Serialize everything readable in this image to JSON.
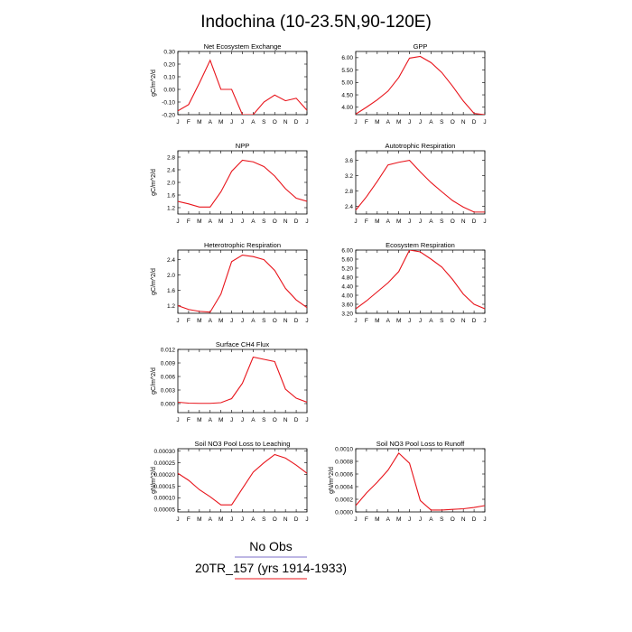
{
  "figure": {
    "title": "Indochina (10-23.5N,90-120E)",
    "line_color": "#e8141b",
    "legend": [
      {
        "label": "No Obs",
        "color": "#7d6fc9"
      },
      {
        "label": "20TR_157 (yrs 1914-1933)",
        "color": "#e8141b"
      }
    ]
  },
  "chart_data": [
    {
      "type": "line",
      "title": "Net Ecosystem Exchange",
      "ylabel": "gC/m^2/d",
      "categories": [
        "J",
        "F",
        "M",
        "A",
        "M",
        "J",
        "J",
        "A",
        "S",
        "O",
        "N",
        "D",
        "J"
      ],
      "values": [
        -0.17,
        -0.12,
        0.05,
        0.23,
        0.0,
        0.0,
        -0.2,
        -0.2,
        -0.1,
        -0.045,
        -0.09,
        -0.07,
        -0.165
      ],
      "ylim": [
        -0.2,
        0.3
      ],
      "yticks": [
        "-0.20",
        "-0.10",
        "0.00",
        "0.10",
        "0.20",
        "0.30"
      ],
      "ytick_values": [
        -0.2,
        -0.1,
        0.0,
        0.1,
        0.2,
        0.3
      ]
    },
    {
      "type": "line",
      "title": "GPP",
      "ylabel": "",
      "categories": [
        "J",
        "F",
        "M",
        "A",
        "M",
        "J",
        "J",
        "A",
        "S",
        "O",
        "N",
        "D",
        "J"
      ],
      "values": [
        3.72,
        4.0,
        4.3,
        4.65,
        5.2,
        5.98,
        6.05,
        5.8,
        5.4,
        4.85,
        4.25,
        3.75,
        3.7
      ],
      "ylim": [
        3.7,
        6.25
      ],
      "yticks": [
        "4.00",
        "4.50",
        "5.00",
        "5.50",
        "6.00"
      ],
      "ytick_values": [
        4.0,
        4.5,
        5.0,
        5.5,
        6.0
      ]
    },
    {
      "type": "line",
      "title": "NPP",
      "ylabel": "gC/m^2/d",
      "categories": [
        "J",
        "F",
        "M",
        "A",
        "M",
        "J",
        "J",
        "A",
        "S",
        "O",
        "N",
        "D",
        "J"
      ],
      "values": [
        1.4,
        1.32,
        1.22,
        1.22,
        1.7,
        2.35,
        2.7,
        2.65,
        2.5,
        2.2,
        1.8,
        1.5,
        1.4
      ],
      "ylim": [
        1.0,
        3.0
      ],
      "yticks": [
        "1.2",
        "1.6",
        "2.0",
        "2.4",
        "2.8"
      ],
      "ytick_values": [
        1.2,
        1.6,
        2.0,
        2.4,
        2.8
      ]
    },
    {
      "type": "line",
      "title": "Autotrophic Respiration",
      "ylabel": "",
      "categories": [
        "J",
        "F",
        "M",
        "A",
        "M",
        "J",
        "J",
        "A",
        "S",
        "O",
        "N",
        "D",
        "J"
      ],
      "values": [
        2.3,
        2.65,
        3.05,
        3.48,
        3.55,
        3.6,
        3.3,
        3.02,
        2.78,
        2.55,
        2.38,
        2.25,
        2.25
      ],
      "ylim": [
        2.2,
        3.85
      ],
      "yticks": [
        "2.4",
        "2.8",
        "3.2",
        "3.6"
      ],
      "ytick_values": [
        2.4,
        2.8,
        3.2,
        3.6
      ]
    },
    {
      "type": "line",
      "title": "Heterotrophic Respiration",
      "ylabel": "gC/m^2/d",
      "categories": [
        "J",
        "F",
        "M",
        "A",
        "M",
        "J",
        "J",
        "A",
        "S",
        "O",
        "N",
        "D",
        "J"
      ],
      "values": [
        1.2,
        1.1,
        1.05,
        1.03,
        1.5,
        2.35,
        2.52,
        2.48,
        2.4,
        2.12,
        1.65,
        1.35,
        1.15
      ],
      "ylim": [
        1.0,
        2.65
      ],
      "yticks": [
        "1.2",
        "1.6",
        "2.0",
        "2.4"
      ],
      "ytick_values": [
        1.2,
        1.6,
        2.0,
        2.4
      ]
    },
    {
      "type": "line",
      "title": "Ecosystem Respiration",
      "ylabel": "",
      "categories": [
        "J",
        "F",
        "M",
        "A",
        "M",
        "J",
        "J",
        "A",
        "S",
        "O",
        "N",
        "D",
        "J"
      ],
      "values": [
        3.4,
        3.75,
        4.15,
        4.55,
        5.05,
        6.0,
        5.92,
        5.6,
        5.25,
        4.7,
        4.05,
        3.6,
        3.4
      ],
      "ylim": [
        3.2,
        6.0
      ],
      "yticks": [
        "3.20",
        "3.60",
        "4.00",
        "4.40",
        "4.80",
        "5.20",
        "5.60",
        "6.00"
      ],
      "ytick_values": [
        3.2,
        3.6,
        4.0,
        4.4,
        4.8,
        5.2,
        5.6,
        6.0
      ]
    },
    {
      "type": "line",
      "title": "Surface CH4 Flux",
      "ylabel": "gC/m^2/d",
      "categories": [
        "J",
        "F",
        "M",
        "A",
        "M",
        "J",
        "J",
        "A",
        "S",
        "O",
        "N",
        "D",
        "J"
      ],
      "values": [
        0.0003,
        0.0001,
        5e-05,
        5e-05,
        0.0002,
        0.0011,
        0.0045,
        0.0103,
        0.0098,
        0.0093,
        0.0032,
        0.0012,
        0.0003
      ],
      "ylim": [
        -0.002,
        0.012
      ],
      "yticks": [
        "0.000",
        "0.003",
        "0.006",
        "0.009",
        "0.012"
      ],
      "ytick_values": [
        0.0,
        0.003,
        0.006,
        0.009,
        0.012
      ]
    },
    {
      "type": "line",
      "title": "Soil NO3 Pool Loss to Leaching",
      "ylabel": "gN/m^2/d",
      "categories": [
        "J",
        "F",
        "M",
        "A",
        "M",
        "J",
        "J",
        "A",
        "S",
        "O",
        "N",
        "D",
        "J"
      ],
      "values": [
        0.000205,
        0.000175,
        0.000135,
        0.000105,
        7e-05,
        7e-05,
        0.00014,
        0.00021,
        0.00025,
        0.000285,
        0.00027,
        0.00024,
        0.000205
      ],
      "ylim": [
        4e-05,
        0.00031
      ],
      "yticks": [
        "0.00005",
        "0.00010",
        "0.00015",
        "0.00020",
        "0.00025",
        "0.00030"
      ],
      "ytick_values": [
        5e-05,
        0.0001,
        0.00015,
        0.0002,
        0.00025,
        0.0003
      ]
    },
    {
      "type": "line",
      "title": "Soil NO3 Pool Loss to Runoff",
      "ylabel": "gN/m^2/d",
      "categories": [
        "J",
        "F",
        "M",
        "A",
        "M",
        "J",
        "J",
        "A",
        "S",
        "O",
        "N",
        "D",
        "J"
      ],
      "values": [
        0.0001,
        0.0003,
        0.00047,
        0.00066,
        0.00093,
        0.00077,
        0.00018,
        3e-05,
        3e-05,
        4e-05,
        5e-05,
        7e-05,
        0.0001
      ],
      "ylim": [
        0.0,
        0.001
      ],
      "yticks": [
        "0.0000",
        "0.0002",
        "0.0004",
        "0.0006",
        "0.0008",
        "0.0010"
      ],
      "ytick_values": [
        0.0,
        0.0002,
        0.0004,
        0.0006,
        0.0008,
        0.001
      ]
    }
  ]
}
